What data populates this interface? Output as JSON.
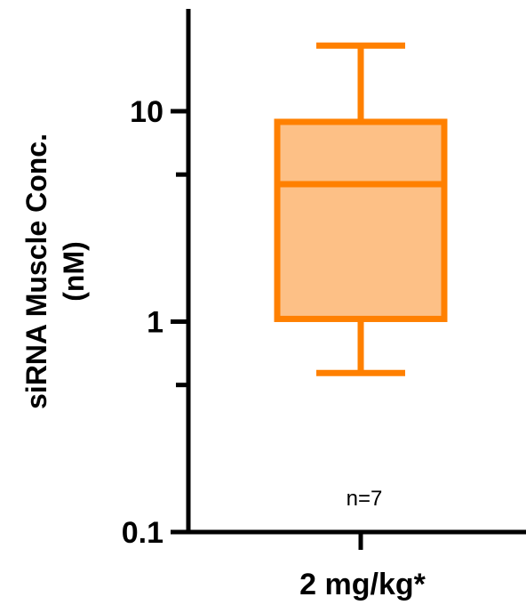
{
  "chart_data": {
    "type": "box",
    "yscale": "log",
    "ylim": [
      0.1,
      30
    ],
    "yticks": [
      0.1,
      1,
      10
    ],
    "ytick_labels": [
      "0.1",
      "1",
      "10"
    ],
    "yminor_ticks": [
      0.5,
      5
    ],
    "ylabel_line1": "siRNA Muscle Conc.",
    "ylabel_line2": "(nM)",
    "categories": [
      "2 mg/kg*"
    ],
    "boxes": [
      {
        "category": "2 mg/kg*",
        "whisker_low": 0.57,
        "q1": 1.03,
        "median": 4.5,
        "q3": 8.9,
        "whisker_high": 20.5,
        "annotation": "n=7"
      }
    ],
    "colors": {
      "box_fill": "#FDC086",
      "box_stroke": "#FF8000",
      "axis": "#000000"
    }
  }
}
